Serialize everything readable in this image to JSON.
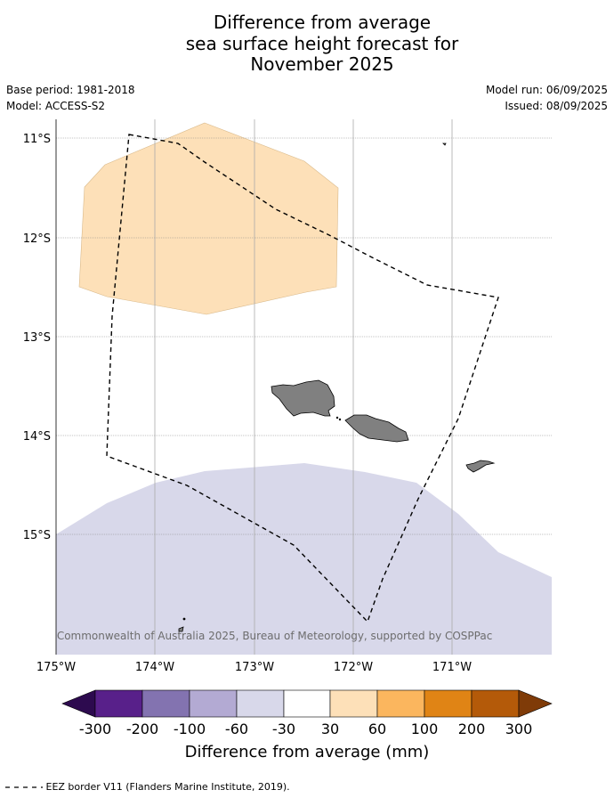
{
  "title": {
    "line1": "Difference from average",
    "line2": "sea surface height forecast for",
    "line3": "November 2025"
  },
  "meta": {
    "base_period": "Base period: 1981-2018",
    "model": "Model: ACCESS-S2",
    "model_run": "Model run: 06/09/2025",
    "issued": "Issued: 08/09/2025"
  },
  "map": {
    "lat_labels": [
      "11°S",
      "12°S",
      "13°S",
      "14°S",
      "15°S"
    ],
    "lon_labels": [
      "175°W",
      "174°W",
      "173°W",
      "172°W",
      "171°W"
    ],
    "copyright": "© Commonwealth of Australia 2025, Bureau of Meteorology, supported by COSPPac",
    "colors": {
      "positive_anomaly": "#fde0b8",
      "negative_anomaly": "#d8d8ea",
      "land": "#808080",
      "eez": "#000000"
    }
  },
  "colorbar": {
    "tick_labels": [
      "-300",
      "-200",
      "-100",
      "-60",
      "-30",
      "30",
      "60",
      "100",
      "200",
      "300"
    ],
    "colors": [
      "#2d0a4f",
      "#58208a",
      "#8373b0",
      "#b3aad3",
      "#d8d8ea",
      "#ffffff",
      "#fde0b8",
      "#fbb65e",
      "#e08415",
      "#b45a09",
      "#7f3b08"
    ],
    "label": "Difference from average (mm)"
  },
  "legend": {
    "eez_label": "EEZ border V11 (Flanders Marine Institute, 2019)."
  }
}
